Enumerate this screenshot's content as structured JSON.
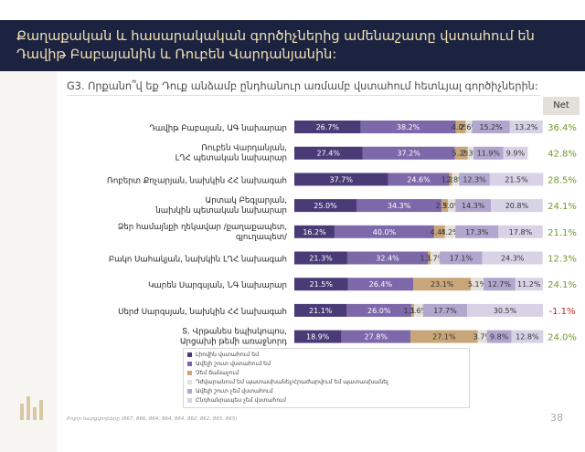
{
  "header": {
    "title": "Քաղաքական և հասարակական գործիչներից ամենաշատը վստահում են Դավիթ Բաբայանին և Ռուբեն Վարդանյանին:"
  },
  "question": "G3. Որքանո՞վ եք Դուք անձամբ ընդհանուր առմամբ վստահում հետևյալ գործիչներին:",
  "net_header": "Net",
  "source": "Բոլոր հարցվողները (867, 866, 864, 864, 864, 862, 862, 865, 865)",
  "page_number": "38",
  "colors": {
    "header_bg": "#1c2341",
    "header_text": "#f1e2b4",
    "net_positive": "#6f9a2e",
    "net_negative": "#cc2222"
  },
  "chart_data": {
    "type": "bar",
    "orientation": "horizontal",
    "stacked": true,
    "categories": [
      "Դավիթ Բաբայան, ԱԳ նախարար",
      "Ռուբեն Վարդանյան, ԼՂՀ պետական նախարար",
      "Ռոբերտ Քոչարյան, նախկին ՀՀ նախագահ",
      "Արտակ Բեգլարյան, նախկին պետական նախարար",
      "Ձեր համայնքի ղեկավար /քաղաքապետ, գյուղապետ/",
      "Բակո Սահակյան, նախկին ԼՂՀ նախագահ",
      "Կարեն Սարգսյան, ՆԳ նախարար",
      "Սերժ Սարգսյան, նախկին ՀՀ նախագահ",
      "Տ. Վրթանես եպիսկոպոս, Արցախի թեմի առաջնորդ"
    ],
    "series": [
      {
        "name": "Լիովին վստահում եմ",
        "color": "#4a3b77",
        "values": [
          26.7,
          27.4,
          37.7,
          25.0,
          16.2,
          21.3,
          21.5,
          21.1,
          18.9
        ]
      },
      {
        "name": "Ավելի շուտ վստահում եմ",
        "color": "#7d68a9",
        "values": [
          38.2,
          37.2,
          24.6,
          34.3,
          40.0,
          32.4,
          26.4,
          26.0,
          27.8
        ]
      },
      {
        "name": "Չեմ ճանաչում",
        "color": "#c8a679",
        "values": [
          4.0,
          5.2,
          1.2,
          2.5,
          4.4,
          1.1,
          23.1,
          1.1,
          27.1
        ]
      },
      {
        "name": "Դժվարանում եմ պատասխանել/Հրաժարվում եմ պատասխանել",
        "color": "#e4e1dc",
        "values": [
          2.6,
          2.3,
          2.8,
          3.0,
          4.2,
          3.7,
          5.1,
          3.6,
          3.7
        ]
      },
      {
        "name": "Ավելի շուտ չեմ վստահում",
        "color": "#b1a6cd",
        "values": [
          15.2,
          11.9,
          12.3,
          14.3,
          17.3,
          17.1,
          12.7,
          17.7,
          9.8
        ]
      },
      {
        "name": "Ընդհանրապես չեմ վստահում",
        "color": "#d8d2e6",
        "values": [
          13.2,
          9.9,
          21.5,
          20.8,
          17.8,
          24.3,
          11.2,
          30.5,
          12.8
        ]
      }
    ],
    "data_labels": [
      [
        "26.7%",
        "38.2%",
        "4.0%",
        "2.6%",
        "15.2%",
        "13.2%"
      ],
      [
        "27.4%",
        "37.2%",
        "5.2%",
        "2.3%",
        "11.9%",
        "9.9%"
      ],
      [
        "37.7%",
        "24.6%",
        "1.2%",
        "2.8%",
        "12.3%",
        "21.5%"
      ],
      [
        "25.0%",
        "34.3%",
        "2.5%",
        "3.0%",
        "14.3%",
        "20.8%"
      ],
      [
        "16.2%",
        "40.0%",
        "4.4%",
        "4.2%",
        "17.3%",
        "17.8%"
      ],
      [
        "21.3%",
        "32.4%",
        "1.1%",
        "3.7%",
        "17.1%",
        "24.3%"
      ],
      [
        "21.5%",
        "26.4%",
        "23.1%",
        "5.1%",
        "12.7%",
        "11.2%"
      ],
      [
        "21.1%",
        "26.0%",
        "1.1%",
        "3.6%",
        "17.7%",
        "30.5%"
      ],
      [
        "18.9%",
        "27.8%",
        "27.1%",
        "3.7%",
        "9.8%",
        "12.8%"
      ]
    ],
    "net_values": [
      36.4,
      42.8,
      28.5,
      24.1,
      21.1,
      12.3,
      24.1,
      -1.1,
      24.0
    ],
    "net_labels": [
      "36.4%",
      "42.8%",
      "28.5%",
      "24.1%",
      "21.1%",
      "12.3%",
      "24.1%",
      "-1.1%",
      "24.0%"
    ],
    "xlim": [
      0,
      100
    ],
    "legend_position": "bottom"
  }
}
